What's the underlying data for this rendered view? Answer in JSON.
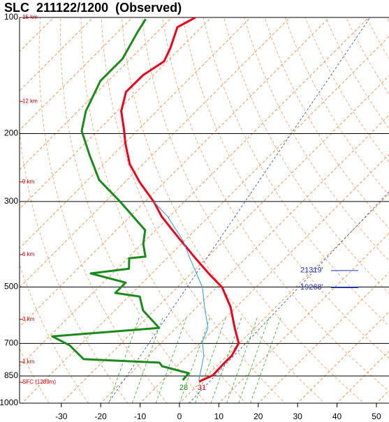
{
  "chart_data": {
    "type": "skewt",
    "title": "SLC  211122/1200  (Observed)",
    "ylim": [
      1000,
      100
    ],
    "log": true,
    "yticks": [
      100,
      200,
      300,
      500,
      700,
      850,
      1000
    ],
    "xlim": [
      -40.6,
      53.2
    ],
    "xticks": [
      -30,
      -20,
      -10,
      0,
      10,
      20,
      30,
      40,
      50
    ],
    "series": [
      {
        "color": "#e8001c",
        "pressure": [
          879,
          847,
          792,
          753,
          699,
          638,
          563,
          501,
          463,
          421,
          371,
          328,
          301,
          268,
          240,
          212,
          195,
          175,
          156,
          141,
          130,
          120,
          106,
          100
        ],
        "values": [
          -0.5,
          1.4,
          1.2,
          1.2,
          -0.2,
          -5.1,
          -11.5,
          -18.6,
          -25.2,
          -32.8,
          -42.6,
          -52.0,
          -57.6,
          -66.1,
          -73.4,
          -79.8,
          -83.7,
          -89.0,
          -92.7,
          -92.6,
          -90.8,
          -92.6,
          -96.1,
          -94.0
        ]
      },
      {
        "color": "#1a8a1a",
        "pressure": [
          872,
          836,
          802,
          785,
          769,
          708,
          671,
          638,
          575,
          529,
          518,
          487,
          461,
          448,
          421,
          417,
          387,
          356,
          301,
          264,
          227,
          197,
          175,
          146,
          128,
          109,
          101
        ],
        "values": [
          -5.0,
          -5.3,
          -13.8,
          -15.4,
          -35.5,
          -42.6,
          -49.3,
          -24.3,
          -32.8,
          -37.2,
          -44.3,
          -44.3,
          -55.5,
          -47.0,
          -49.6,
          -45.9,
          -49.6,
          -52.7,
          -66.1,
          -77.1,
          -86.0,
          -94.0,
          -98.0,
          -102.0,
          -102.0,
          -105.0,
          -106.2
        ]
      },
      {
        "color": "#3399cc",
        "pressure": [
          872,
          753,
          693,
          638,
          563,
          501,
          421,
          379,
          328,
          301
        ],
        "values": [
          -0.9,
          -5.9,
          -9.8,
          -11.9,
          -18.1,
          -23.6,
          -34.2,
          -40.4,
          -50.5,
          -57.6
        ]
      }
    ],
    "height_labels": [
      {
        "pressure": 100,
        "label": "15 km"
      },
      {
        "pressure": 165,
        "label": "12 km"
      },
      {
        "pressure": 267,
        "label": "9 km"
      },
      {
        "pressure": 412,
        "label": "6 km"
      },
      {
        "pressure": 606,
        "label": "3 km"
      },
      {
        "pressure": 782,
        "label": "1 km"
      },
      {
        "pressure": 883,
        "label": "SFC (1289m)"
      }
    ],
    "annotations": [
      {
        "pressure": 453,
        "label": "21319'"
      },
      {
        "pressure": 501,
        "label": "19268'"
      }
    ],
    "surface_dewpoint": 28,
    "surface_temperature": 31
  }
}
